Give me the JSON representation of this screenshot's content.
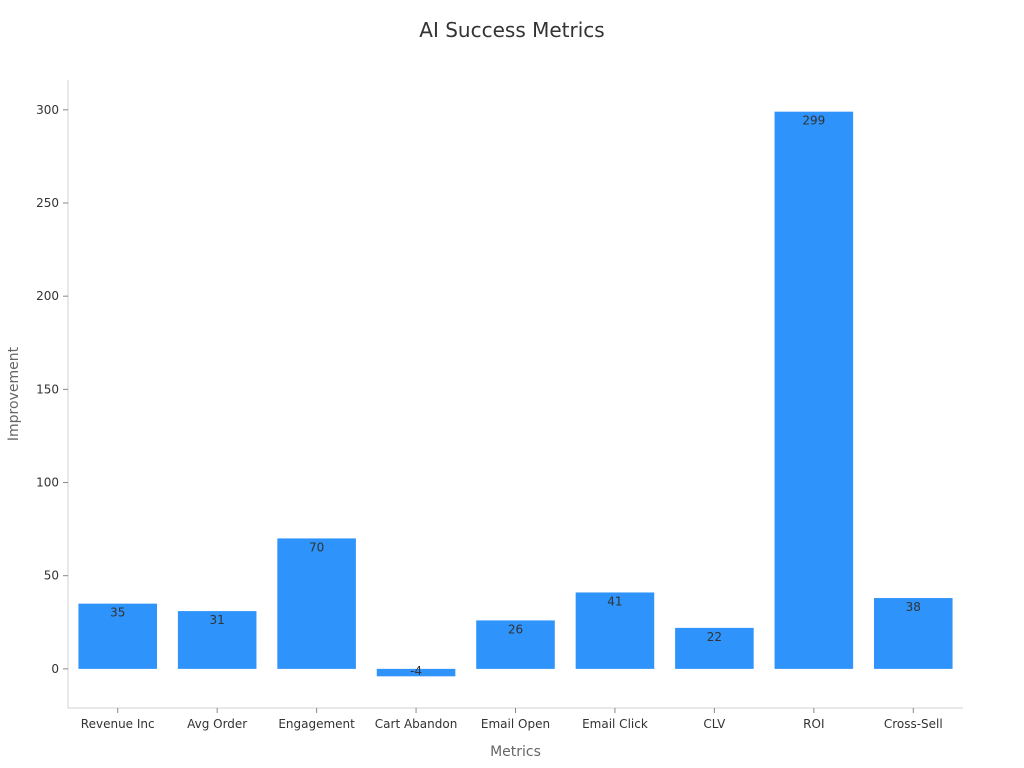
{
  "chart_data": {
    "type": "bar",
    "title": "AI Success Metrics",
    "xlabel": "Metrics",
    "ylabel": "Improvement",
    "categories": [
      "Revenue Inc",
      "Avg Order",
      "Engagement",
      "Cart Abandon",
      "Email Open",
      "Email Click",
      "CLV",
      "ROI",
      "Cross-Sell"
    ],
    "values": [
      35,
      31,
      70,
      -4,
      26,
      41,
      22,
      299,
      38
    ],
    "ylim": [
      -21,
      316
    ],
    "yticks": [
      0,
      50,
      100,
      150,
      200,
      250,
      300
    ],
    "grid": false,
    "legend": "none",
    "bar_color": "#2e93fa",
    "label_color": "#333333",
    "axis_color": "#d0d0d0",
    "axis_label_color": "#666666"
  }
}
